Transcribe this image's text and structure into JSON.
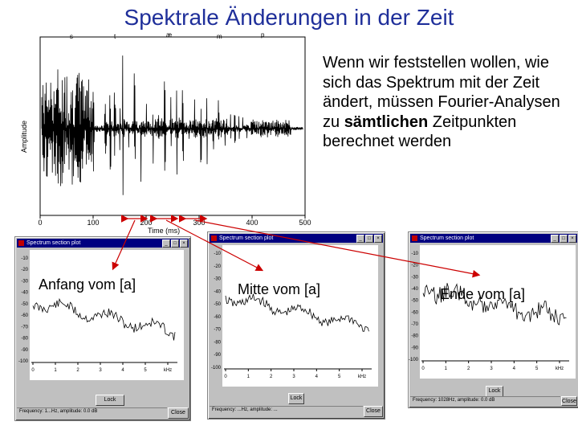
{
  "slide": {
    "title": "Spektrale Änderungen in der Zeit",
    "description_parts": [
      "Wenn wir feststellen wollen, wie sich das Spektrum mit der Zeit ändert, müssen Fourier-Analysen zu ",
      "sämtlichen",
      " Zeitpunkten berechnet werden"
    ]
  },
  "waveform": {
    "ylabel": "Amplitude",
    "xlabel": "Time (ms)",
    "segment_labels": [
      "s",
      "t",
      "æ",
      "m",
      "p"
    ],
    "x_ticks": [
      "0",
      "100",
      "200",
      "300",
      "400",
      "500"
    ]
  },
  "spectrum_windows": [
    {
      "title": "Spectrum section plot",
      "label": "Anfang vom [a]",
      "y_ticks": [
        "-10",
        "-20",
        "-30",
        "-40",
        "-50",
        "-60",
        "-70",
        "-80",
        "-90",
        "-100"
      ],
      "x_ticks": [
        "0",
        "1",
        "2",
        "3",
        "4",
        "5",
        "kHz"
      ],
      "lock_label": "Lock",
      "close_label": "Close",
      "status": "Frequency: 1...Hz, amplitude: 0.0 dB"
    },
    {
      "title": "Spectrum section plot",
      "label": "Mitte vom [a]",
      "y_ticks": [
        "-10",
        "-20",
        "-30",
        "-40",
        "-50",
        "-60",
        "-70",
        "-80",
        "-90",
        "-100"
      ],
      "x_ticks": [
        "0",
        "1",
        "2",
        "3",
        "4",
        "5",
        "kHz"
      ],
      "lock_label": "Lock",
      "close_label": "Close",
      "status": "Frequency: ...Hz, amplitude: ..."
    },
    {
      "title": "Spectrum section plot",
      "label": "Ende  vom [a]",
      "y_ticks": [
        "-10",
        "-20",
        "-30",
        "-40",
        "-50",
        "-60",
        "-70",
        "-80",
        "-90",
        "-100"
      ],
      "x_ticks": [
        "0",
        "1",
        "2",
        "3",
        "4",
        "5",
        "kHz"
      ],
      "lock_label": "Lock",
      "close_label": "Close",
      "status": "Frequency: 1028Hz, amplitude: 0.0 dB"
    }
  ],
  "colors": {
    "title": "#1f2f9a",
    "arrow": "#cc0000",
    "titlebar": "#000080"
  }
}
